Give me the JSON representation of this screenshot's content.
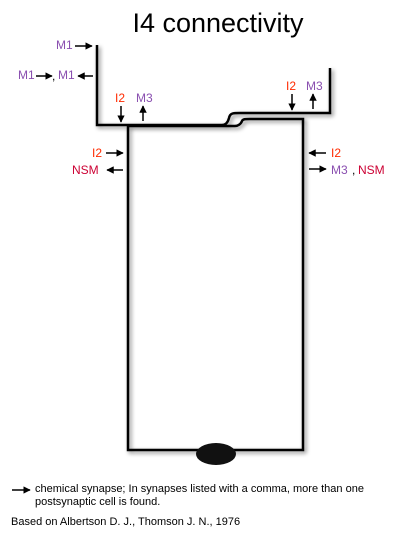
{
  "title": "I4 connectivity",
  "colors": {
    "M1": "#8a4fb0",
    "M3": "#8a4fb0",
    "I2": "#ff2a00",
    "NSM": "#cc0033",
    "outline": "#000000"
  },
  "labels": {
    "top_left_1": "M1",
    "top_left_2a": "M1",
    "top_left_2b": "M1",
    "nose_left_in": "I2",
    "nose_left_out": "M3",
    "nose_right_in": "I2",
    "nose_right_out": "M3",
    "body_left_in": "I2",
    "body_left_out": "NSM",
    "body_right_in": "I2",
    "body_right_out_a": "M3",
    "body_right_out_b": "NSM",
    "comma": ","
  },
  "legend": {
    "arrow_icon": "right-arrow-icon",
    "text": "chemical synapse; In synapses listed with a comma, more than one postsynaptic cell is found."
  },
  "citation": "Based on Albertson D. J., Thomson J. N., 1976"
}
